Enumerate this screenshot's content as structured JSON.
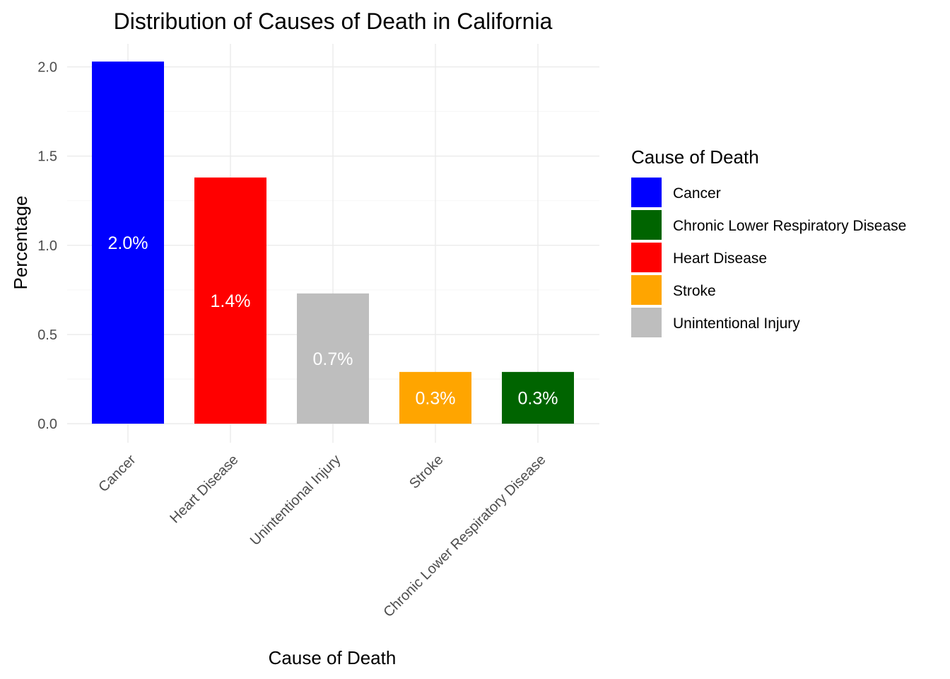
{
  "chart_data": {
    "type": "bar",
    "title": "Distribution of Causes of Death in California",
    "xlabel": "Cause of Death",
    "ylabel": "Percentage",
    "categories": [
      "Cancer",
      "Heart Disease",
      "Unintentional Injury",
      "Stroke",
      "Chronic Lower Respiratory Disease"
    ],
    "values": [
      2.03,
      1.38,
      0.73,
      0.29,
      0.29
    ],
    "data_labels": [
      "2.0%",
      "1.4%",
      "0.7%",
      "0.3%",
      "0.3%"
    ],
    "colors": [
      "#0000ff",
      "#ff0000",
      "#bebebe",
      "#ffa500",
      "#006400"
    ],
    "ylim": [
      0,
      2.13
    ],
    "yticks": [
      0.0,
      0.5,
      1.0,
      1.5,
      2.0
    ],
    "ytick_labels": [
      "0.0",
      "0.5",
      "1.0",
      "1.5",
      "2.0"
    ],
    "grid": true,
    "legend": {
      "title": "Cause of Death",
      "position": "right",
      "entries": [
        {
          "label": "Cancer",
          "color": "#0000ff"
        },
        {
          "label": "Chronic Lower Respiratory Disease",
          "color": "#006400"
        },
        {
          "label": "Heart Disease",
          "color": "#ff0000"
        },
        {
          "label": "Stroke",
          "color": "#ffa500"
        },
        {
          "label": "Unintentional Injury",
          "color": "#bebebe"
        }
      ]
    }
  }
}
